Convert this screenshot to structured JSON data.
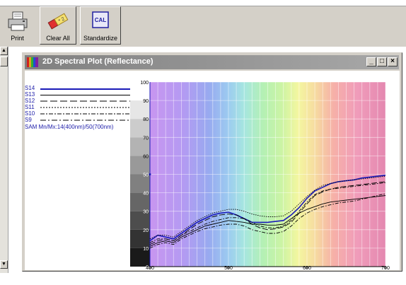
{
  "toolbar": {
    "buttons": [
      {
        "label": "Print",
        "icon": "printer-icon"
      },
      {
        "label": "Clear All",
        "icon": "eraser-icon"
      },
      {
        "label": "Standardize",
        "icon": "cal-icon",
        "icon_text": "CAL"
      }
    ]
  },
  "window": {
    "title": "2D Spectral Plot (Reflectance)",
    "controls": {
      "minimize": "_",
      "maximize": "□",
      "close": "×"
    }
  },
  "legend": {
    "items": [
      {
        "label": "S14",
        "style": "solid"
      },
      {
        "label": "S13",
        "style": "solid"
      },
      {
        "label": "S12",
        "style": "longdash"
      },
      {
        "label": "S11",
        "style": "dotted"
      },
      {
        "label": "S10",
        "style": "dashdot"
      },
      {
        "label": "S9",
        "style": "dashdot"
      }
    ],
    "sam_text": "SAM Mn/Mx:14(400nm)/50(700nm)"
  },
  "chart_data": {
    "type": "line",
    "xlim": [
      400,
      700
    ],
    "ylim": [
      0,
      100
    ],
    "xticks": [
      "400",
      "500",
      "600",
      "700"
    ],
    "yticks": [
      "0",
      "10",
      "20",
      "30",
      "40",
      "50",
      "60",
      "70",
      "80",
      "90",
      "100"
    ],
    "x": [
      400,
      410,
      420,
      430,
      440,
      450,
      460,
      470,
      480,
      490,
      500,
      510,
      520,
      530,
      540,
      550,
      560,
      570,
      580,
      590,
      600,
      610,
      620,
      630,
      640,
      650,
      660,
      670,
      680,
      690,
      700
    ],
    "series": [
      {
        "name": "S14",
        "color": "#1a1ab8",
        "style": "solid",
        "values": [
          14,
          17,
          16,
          15,
          18,
          21,
          24,
          26,
          28,
          29,
          29.5,
          28,
          26,
          24,
          24,
          24,
          24.5,
          25,
          28,
          32,
          37,
          41,
          43,
          45,
          46,
          46.5,
          47,
          48,
          48.5,
          49,
          49.5
        ]
      },
      {
        "name": "S13",
        "color": "#000000",
        "style": "solid",
        "values": [
          11,
          13,
          14,
          13,
          16,
          18,
          20,
          22,
          23,
          24,
          25,
          24.5,
          24,
          23,
          23,
          22.5,
          22.5,
          23,
          26,
          29,
          31,
          32.5,
          34,
          35,
          35.5,
          36,
          36.5,
          37,
          37.5,
          38,
          38.5
        ]
      },
      {
        "name": "S12",
        "color": "#000000",
        "style": "longdash",
        "values": [
          12,
          14,
          15,
          14,
          17,
          20,
          23,
          25,
          27,
          28,
          28.5,
          28,
          26,
          23,
          21,
          20,
          20.5,
          21.5,
          24,
          29,
          34,
          38.5,
          40.5,
          42,
          43,
          43.5,
          44,
          44.5,
          45,
          45.5,
          46
        ]
      },
      {
        "name": "S11",
        "color": "#000000",
        "style": "dotted",
        "values": [
          15,
          17,
          17,
          16,
          19,
          22,
          25,
          27,
          29,
          30,
          31,
          31,
          30,
          28.5,
          27.5,
          27,
          27,
          27.5,
          30,
          34,
          38,
          41.5,
          44,
          45,
          46,
          46.5,
          47,
          47.5,
          48,
          48.5,
          49
        ]
      },
      {
        "name": "S10",
        "color": "#000000",
        "style": "dashdot",
        "values": [
          13,
          15,
          15,
          14,
          17,
          19,
          21,
          23,
          24.5,
          25.5,
          26.5,
          26.5,
          26,
          24,
          22,
          21,
          21,
          22,
          25,
          30,
          35,
          39,
          41,
          42,
          42.5,
          43,
          43.5,
          44,
          44.5,
          45,
          45.5
        ]
      },
      {
        "name": "S9",
        "color": "#000000",
        "style": "dashdot",
        "values": [
          10,
          12,
          13,
          12,
          15,
          17,
          19,
          20.5,
          21.5,
          22.5,
          23,
          23,
          22,
          20,
          19,
          18,
          18,
          19,
          22,
          26,
          29,
          31,
          32.5,
          33.5,
          34.5,
          35,
          35.5,
          36.5,
          37.5,
          38.5,
          39.5
        ]
      }
    ]
  }
}
